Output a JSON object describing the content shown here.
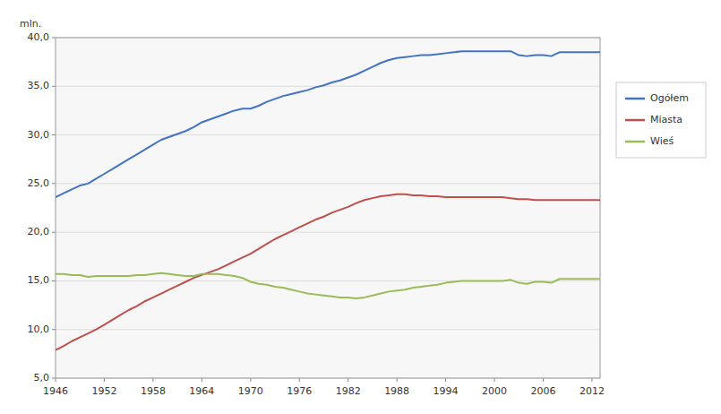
{
  "chart_data": {
    "type": "line",
    "ylabel": "mln.",
    "x": [
      1946,
      1947,
      1948,
      1949,
      1950,
      1951,
      1952,
      1953,
      1954,
      1955,
      1956,
      1957,
      1958,
      1959,
      1960,
      1961,
      1962,
      1963,
      1964,
      1965,
      1966,
      1967,
      1968,
      1969,
      1970,
      1971,
      1972,
      1973,
      1974,
      1975,
      1976,
      1977,
      1978,
      1979,
      1980,
      1981,
      1982,
      1983,
      1984,
      1985,
      1986,
      1987,
      1988,
      1989,
      1990,
      1991,
      1992,
      1993,
      1994,
      1995,
      1996,
      1997,
      1998,
      1999,
      2000,
      2001,
      2002,
      2003,
      2004,
      2005,
      2006,
      2007,
      2008,
      2009,
      2010,
      2011,
      2012,
      2013
    ],
    "series": [
      {
        "name": "Ogółem",
        "color": "#4472C4",
        "values": [
          23.6,
          24.0,
          24.4,
          24.8,
          25.0,
          25.5,
          26.0,
          26.5,
          27.0,
          27.5,
          28.0,
          28.5,
          29.0,
          29.5,
          29.8,
          30.1,
          30.4,
          30.8,
          31.3,
          31.6,
          31.9,
          32.2,
          32.5,
          32.7,
          32.7,
          33.0,
          33.4,
          33.7,
          34.0,
          34.2,
          34.4,
          34.6,
          34.9,
          35.1,
          35.4,
          35.6,
          35.9,
          36.2,
          36.6,
          37.0,
          37.4,
          37.7,
          37.9,
          38.0,
          38.1,
          38.2,
          38.2,
          38.3,
          38.4,
          38.5,
          38.6,
          38.6,
          38.6,
          38.6,
          38.6,
          38.6,
          38.6,
          38.2,
          38.1,
          38.2,
          38.2,
          38.1,
          38.5,
          38.5,
          38.5,
          38.5,
          38.5,
          38.5
        ]
      },
      {
        "name": "Miasta",
        "color": "#C0504D",
        "values": [
          7.9,
          8.3,
          8.8,
          9.2,
          9.6,
          10.0,
          10.5,
          11.0,
          11.5,
          12.0,
          12.4,
          12.9,
          13.3,
          13.7,
          14.1,
          14.5,
          14.9,
          15.3,
          15.6,
          15.9,
          16.2,
          16.6,
          17.0,
          17.4,
          17.8,
          18.3,
          18.8,
          19.3,
          19.7,
          20.1,
          20.5,
          20.9,
          21.3,
          21.6,
          22.0,
          22.3,
          22.6,
          23.0,
          23.3,
          23.5,
          23.7,
          23.8,
          23.9,
          23.9,
          23.8,
          23.8,
          23.7,
          23.7,
          23.6,
          23.6,
          23.6,
          23.6,
          23.6,
          23.6,
          23.6,
          23.6,
          23.5,
          23.4,
          23.4,
          23.3,
          23.3,
          23.3,
          23.3,
          23.3,
          23.3,
          23.3,
          23.3,
          23.3
        ]
      },
      {
        "name": "Wieś",
        "color": "#9BBB59",
        "values": [
          15.7,
          15.7,
          15.6,
          15.6,
          15.4,
          15.5,
          15.5,
          15.5,
          15.5,
          15.5,
          15.6,
          15.6,
          15.7,
          15.8,
          15.7,
          15.6,
          15.5,
          15.5,
          15.7,
          15.7,
          15.7,
          15.6,
          15.5,
          15.3,
          14.9,
          14.7,
          14.6,
          14.4,
          14.3,
          14.1,
          13.9,
          13.7,
          13.6,
          13.5,
          13.4,
          13.3,
          13.3,
          13.2,
          13.3,
          13.5,
          13.7,
          13.9,
          14.0,
          14.1,
          14.3,
          14.4,
          14.5,
          14.6,
          14.8,
          14.9,
          15.0,
          15.0,
          15.0,
          15.0,
          15.0,
          15.0,
          15.1,
          14.8,
          14.7,
          14.9,
          14.9,
          14.8,
          15.2,
          15.2,
          15.2,
          15.2,
          15.2,
          15.2
        ]
      }
    ],
    "xlim": [
      1946,
      2013
    ],
    "xticks": [
      1946,
      1952,
      1958,
      1964,
      1970,
      1976,
      1982,
      1988,
      1994,
      2000,
      2006,
      2012
    ],
    "ylim": [
      5.0,
      40.0
    ],
    "yticks": [
      {
        "value": 5.0,
        "label": "5,0"
      },
      {
        "value": 10.0,
        "label": "10,0"
      },
      {
        "value": 15.0,
        "label": "15,0"
      },
      {
        "value": 20.0,
        "label": "20,0"
      },
      {
        "value": 25.0,
        "label": "25,0"
      },
      {
        "value": 30.0,
        "label": "30,0"
      },
      {
        "value": 35.0,
        "label": "35,0"
      },
      {
        "value": 40.0,
        "label": "40,0"
      }
    ],
    "grid": true,
    "legend": "right"
  }
}
